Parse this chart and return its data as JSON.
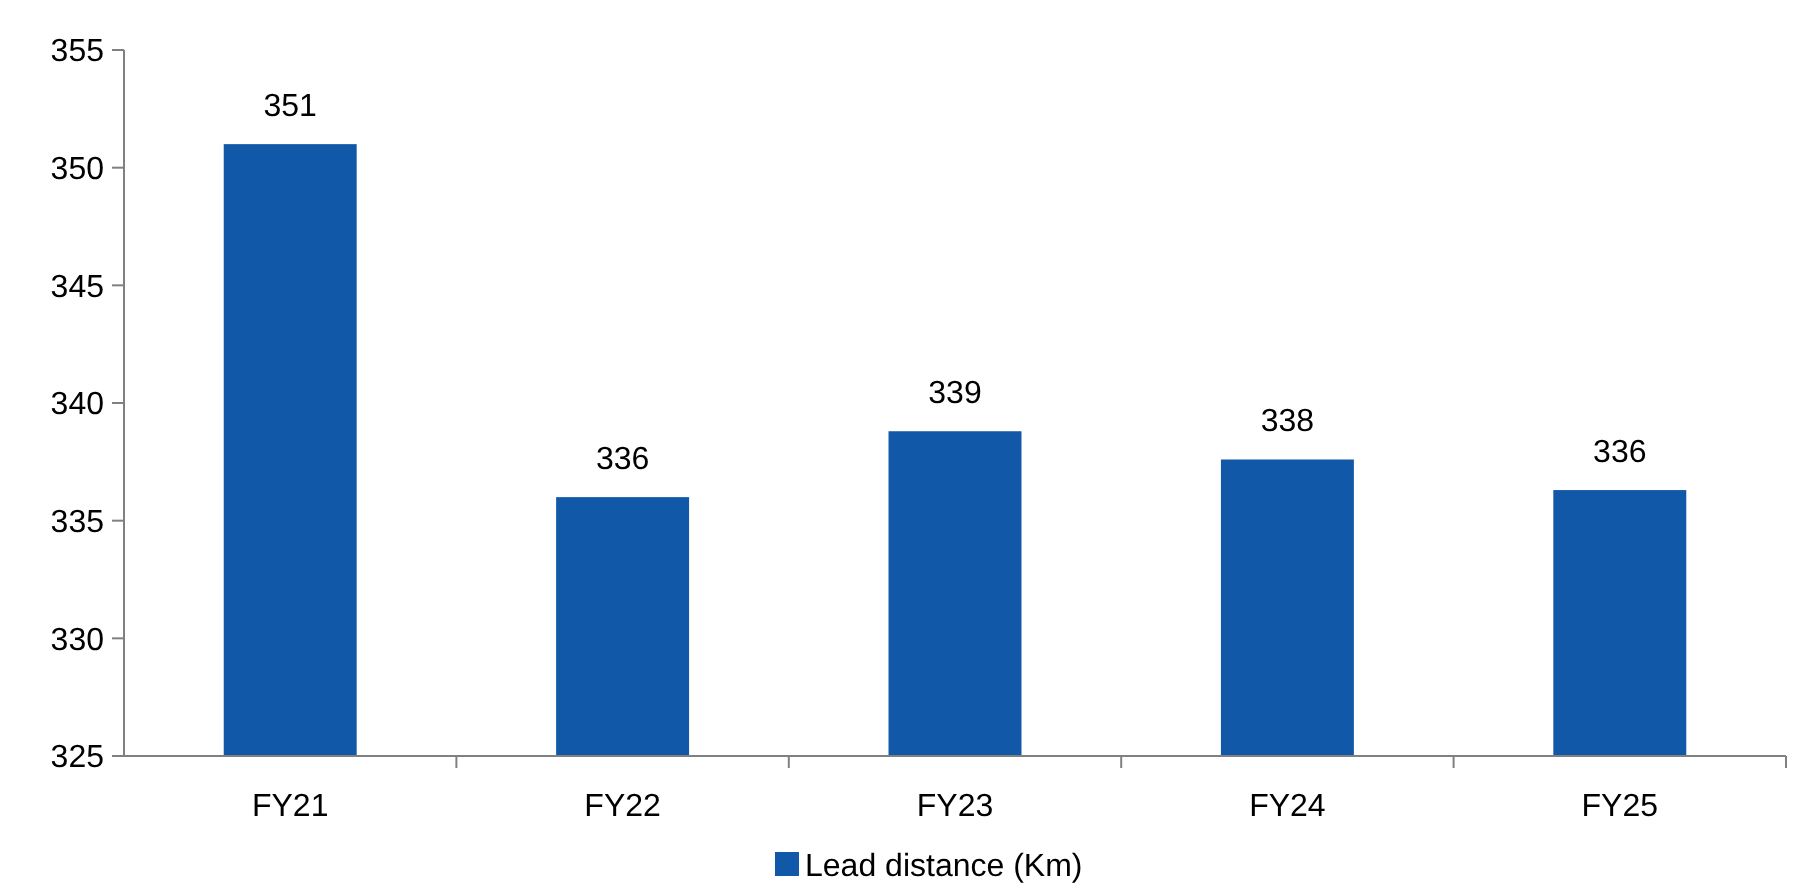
{
  "chart_data": {
    "type": "bar",
    "categories": [
      "FY21",
      "FY22",
      "FY23",
      "FY24",
      "FY25"
    ],
    "series": [
      {
        "name": "Lead distance (Km)",
        "color": "#1258a8",
        "values": [
          351,
          336,
          338.8,
          337.6,
          336.3
        ],
        "value_labels": [
          "351",
          "336",
          "339",
          "338",
          "336"
        ]
      }
    ],
    "ylim": [
      325,
      355
    ],
    "yticks": [
      325,
      330,
      335,
      340,
      345,
      350,
      355
    ],
    "grid": false,
    "legend": "bottom"
  }
}
